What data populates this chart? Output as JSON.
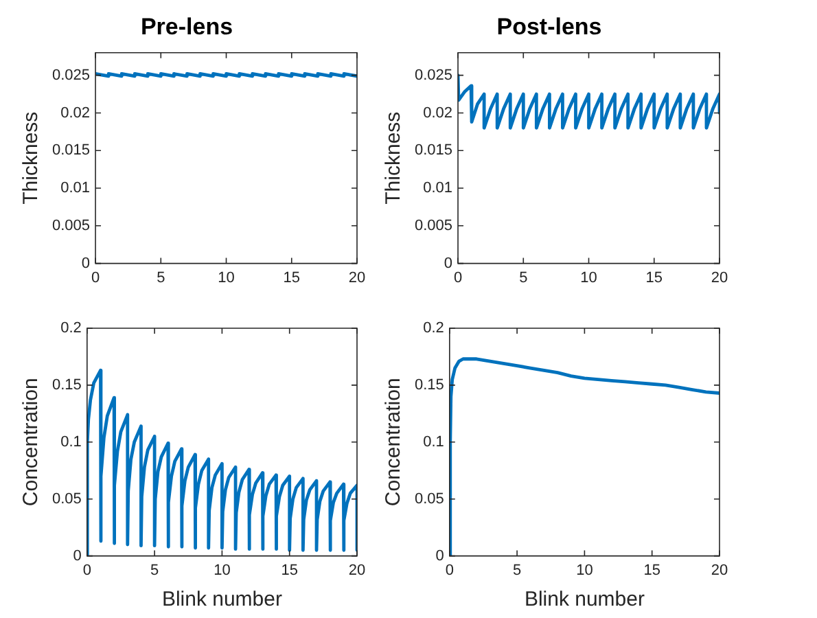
{
  "chart_data": [
    {
      "type": "line",
      "title": "Pre-lens",
      "ylabel": "Thickness",
      "xlim": [
        0,
        20
      ],
      "xticks": [
        0,
        5,
        10,
        15,
        20
      ],
      "ylim": [
        0,
        0.028
      ],
      "yticks": [
        0,
        0.005,
        0.01,
        0.015,
        0.02,
        0.025
      ],
      "grid": false,
      "series": [
        {
          "color": "#0072bd",
          "x": [
            0,
            1,
            1,
            2,
            2,
            3,
            3,
            4,
            4,
            5,
            5,
            6,
            6,
            7,
            7,
            8,
            8,
            9,
            9,
            10,
            10,
            11,
            11,
            12,
            12,
            13,
            13,
            14,
            14,
            15,
            15,
            16,
            16,
            17,
            17,
            18,
            18,
            19,
            19,
            20
          ],
          "values": [
            0.0252,
            0.0249,
            0.0252,
            0.0249,
            0.0252,
            0.0249,
            0.0252,
            0.0249,
            0.0252,
            0.0249,
            0.0252,
            0.0249,
            0.0252,
            0.0249,
            0.0252,
            0.0249,
            0.0252,
            0.0249,
            0.0252,
            0.0249,
            0.0252,
            0.0249,
            0.0252,
            0.0249,
            0.0252,
            0.0249,
            0.0252,
            0.0249,
            0.0252,
            0.0249,
            0.0252,
            0.0249,
            0.0252,
            0.0249,
            0.0252,
            0.0249,
            0.0252,
            0.0249,
            0.0252,
            0.0249
          ]
        }
      ]
    },
    {
      "type": "line",
      "title": "Post-lens",
      "ylabel": "Thickness",
      "xlim": [
        0,
        20
      ],
      "xticks": [
        0,
        5,
        10,
        15,
        20
      ],
      "ylim": [
        0,
        0.028
      ],
      "yticks": [
        0,
        0.005,
        0.01,
        0.015,
        0.02,
        0.025
      ],
      "grid": false,
      "series": [
        {
          "color": "#0072bd",
          "x": [
            0,
            0.05,
            0.5,
            1,
            1.05,
            1.5,
            2,
            2,
            2.5,
            3,
            3,
            3.5,
            4,
            4,
            4.5,
            5,
            5,
            5.5,
            6,
            6,
            6.5,
            7,
            7,
            7.5,
            8,
            8,
            8.5,
            9,
            9,
            9.5,
            10,
            10,
            10.5,
            11,
            11,
            11.5,
            12,
            12,
            12.5,
            13,
            13,
            13.5,
            14,
            14,
            14.5,
            15,
            15,
            15.5,
            16,
            16,
            16.5,
            17,
            17,
            17.5,
            18,
            18,
            18.5,
            19,
            19,
            19.5,
            20,
            20
          ],
          "values": [
            0.025,
            0.0217,
            0.0228,
            0.0236,
            0.0188,
            0.0212,
            0.0225,
            0.018,
            0.0206,
            0.0225,
            0.018,
            0.0206,
            0.0225,
            0.018,
            0.0206,
            0.0225,
            0.018,
            0.0206,
            0.0225,
            0.018,
            0.0206,
            0.0225,
            0.018,
            0.0206,
            0.0225,
            0.018,
            0.0206,
            0.0225,
            0.018,
            0.0206,
            0.0225,
            0.018,
            0.0206,
            0.0225,
            0.018,
            0.0206,
            0.0225,
            0.018,
            0.0206,
            0.0225,
            0.018,
            0.0206,
            0.0225,
            0.018,
            0.0206,
            0.0225,
            0.018,
            0.0206,
            0.0225,
            0.018,
            0.0206,
            0.0225,
            0.018,
            0.0206,
            0.0225,
            0.018,
            0.0206,
            0.0225,
            0.018,
            0.0206,
            0.0225,
            0.02
          ]
        }
      ]
    },
    {
      "type": "line",
      "xlabel": "Blink number",
      "ylabel": "Concentration",
      "xlim": [
        0,
        20
      ],
      "xticks": [
        0,
        5,
        10,
        15,
        20
      ],
      "ylim": [
        0,
        0.2
      ],
      "yticks": [
        0,
        0.05,
        0.1,
        0.15,
        0.2
      ],
      "grid": false,
      "series": [
        {
          "color": "#0072bd",
          "x": [
            0,
            0.02,
            0.1,
            0.25,
            0.5,
            1,
            1,
            1.05,
            1.25,
            1.5,
            2,
            2,
            2.05,
            2.25,
            2.5,
            3,
            3,
            3.05,
            3.25,
            3.5,
            4,
            4,
            4.05,
            4.25,
            4.5,
            5,
            5,
            5.05,
            5.25,
            5.5,
            6,
            6,
            6.05,
            6.25,
            6.5,
            7,
            7,
            7.05,
            7.25,
            7.5,
            8,
            8,
            8.05,
            8.25,
            8.5,
            9,
            9,
            9.05,
            9.25,
            9.5,
            10,
            10,
            10.05,
            10.25,
            10.5,
            11,
            11,
            11.05,
            11.25,
            11.5,
            12,
            12,
            12.05,
            12.25,
            12.5,
            13,
            13,
            13.05,
            13.25,
            13.5,
            14,
            14,
            14.05,
            14.25,
            14.5,
            15,
            15,
            15.05,
            15.25,
            15.5,
            16,
            16,
            16.05,
            16.25,
            16.5,
            17,
            17,
            17.05,
            17.25,
            17.5,
            18,
            18,
            18.05,
            18.25,
            18.5,
            19,
            19,
            19.05,
            19.25,
            19.5,
            20,
            20
          ],
          "values": [
            0,
            0.1,
            0.12,
            0.137,
            0.152,
            0.163,
            0.013,
            0.07,
            0.104,
            0.123,
            0.139,
            0.011,
            0.062,
            0.092,
            0.109,
            0.124,
            0.01,
            0.057,
            0.085,
            0.1,
            0.114,
            0.009,
            0.052,
            0.078,
            0.093,
            0.105,
            0.009,
            0.05,
            0.074,
            0.087,
            0.099,
            0.008,
            0.047,
            0.07,
            0.083,
            0.094,
            0.008,
            0.044,
            0.066,
            0.078,
            0.089,
            0.007,
            0.042,
            0.063,
            0.075,
            0.085,
            0.007,
            0.04,
            0.06,
            0.071,
            0.081,
            0.007,
            0.039,
            0.058,
            0.069,
            0.078,
            0.006,
            0.038,
            0.056,
            0.067,
            0.076,
            0.006,
            0.036,
            0.054,
            0.064,
            0.073,
            0.006,
            0.035,
            0.053,
            0.063,
            0.071,
            0.006,
            0.035,
            0.052,
            0.062,
            0.07,
            0.005,
            0.033,
            0.05,
            0.06,
            0.068,
            0.005,
            0.032,
            0.049,
            0.058,
            0.066,
            0.005,
            0.032,
            0.048,
            0.057,
            0.065,
            0.005,
            0.031,
            0.047,
            0.055,
            0.063,
            0.005,
            0.031,
            0.046,
            0.055,
            0.062,
            0.005
          ]
        }
      ]
    },
    {
      "type": "line",
      "xlabel": "Blink number",
      "ylabel": "Concentration",
      "xlim": [
        0,
        20
      ],
      "xticks": [
        0,
        5,
        10,
        15,
        20
      ],
      "ylim": [
        0,
        0.2
      ],
      "yticks": [
        0,
        0.05,
        0.1,
        0.15,
        0.2
      ],
      "grid": false,
      "series": [
        {
          "color": "#0072bd",
          "x": [
            0,
            0.05,
            0.1,
            0.2,
            0.4,
            0.7,
            1,
            2,
            3,
            4,
            5,
            6,
            7,
            8,
            9,
            10,
            11,
            12,
            13,
            14,
            15,
            16,
            17,
            18,
            19,
            20
          ],
          "values": [
            0,
            0.1,
            0.14,
            0.155,
            0.165,
            0.171,
            0.173,
            0.173,
            0.171,
            0.169,
            0.167,
            0.165,
            0.163,
            0.161,
            0.158,
            0.156,
            0.155,
            0.154,
            0.153,
            0.152,
            0.151,
            0.15,
            0.148,
            0.146,
            0.144,
            0.143
          ]
        }
      ]
    }
  ]
}
